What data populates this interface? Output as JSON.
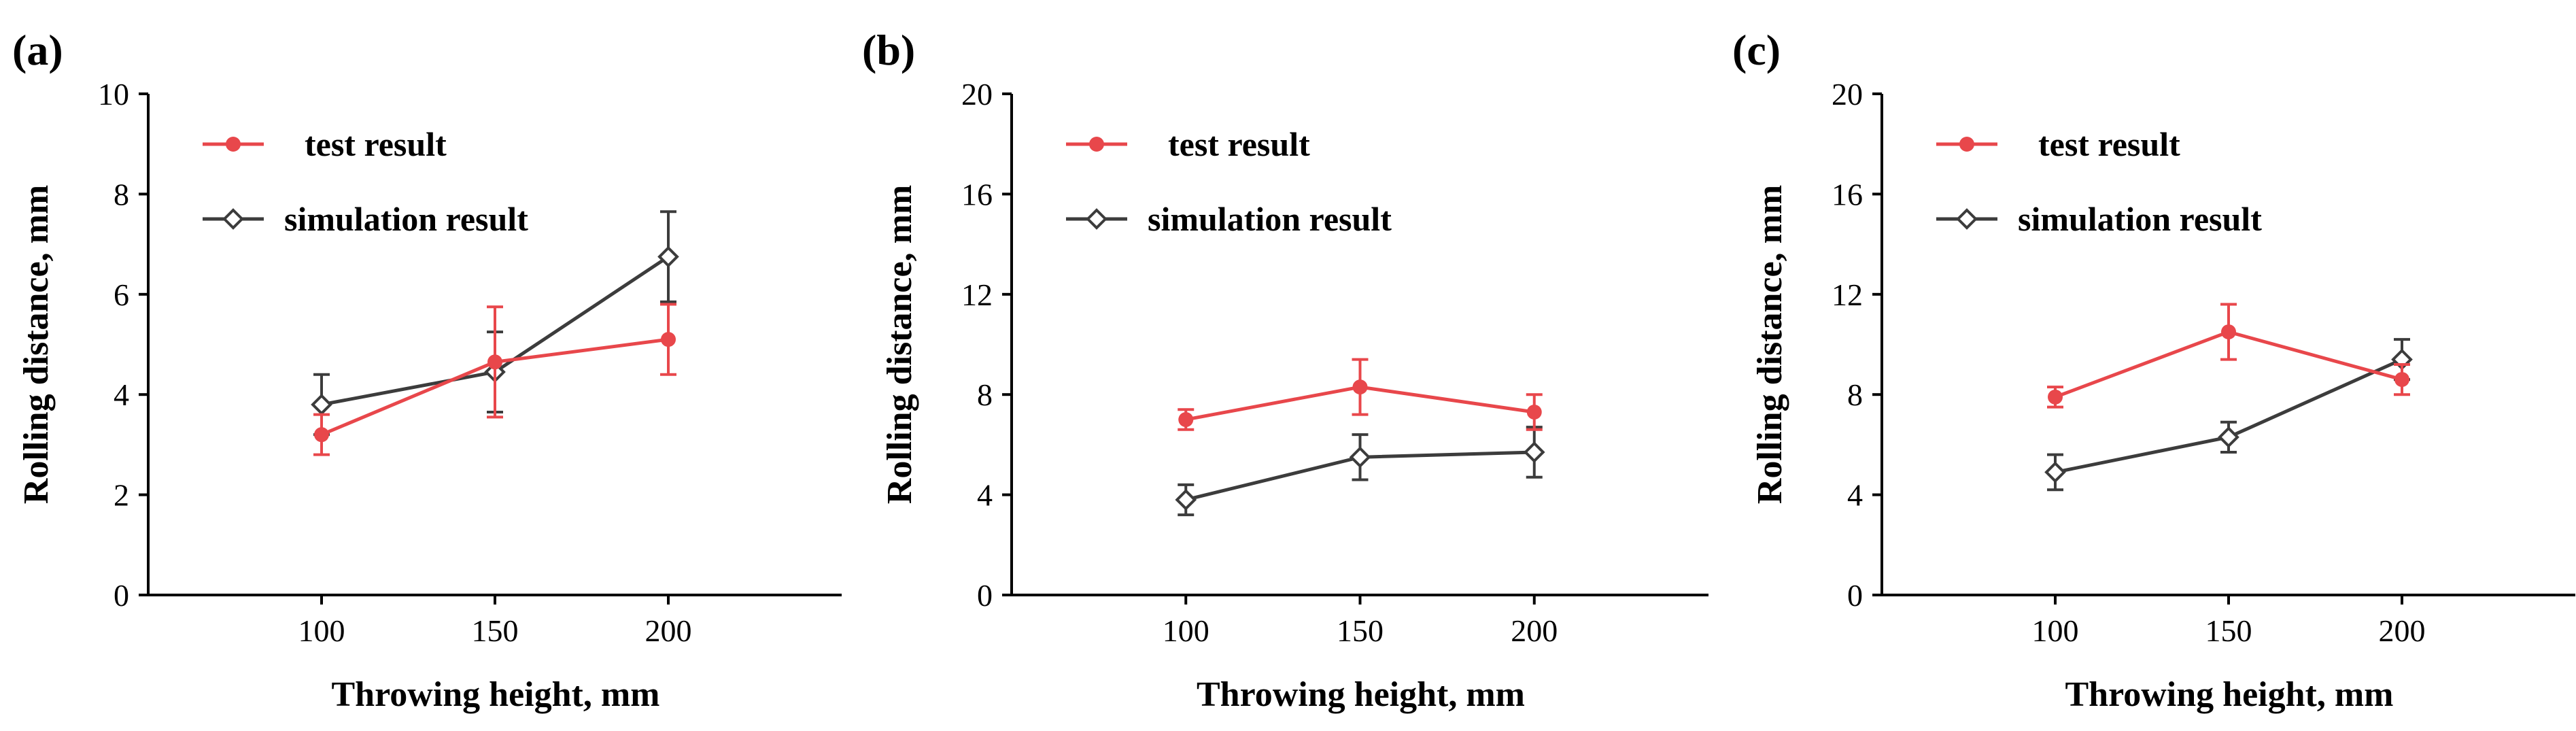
{
  "chart_data": [
    {
      "type": "line",
      "panel_label": "(a)",
      "xlabel": "Throwing  height, mm",
      "ylabel": "Rolling  distance,  mm",
      "x": [
        100,
        150,
        200
      ],
      "x_ticks": [
        "100",
        "150",
        "200"
      ],
      "xlim": [
        50,
        250
      ],
      "ylim": [
        0,
        10
      ],
      "y_ticks": [
        "0",
        "2",
        "4",
        "6",
        "8",
        "10"
      ],
      "legend_position": "top-left",
      "series": [
        {
          "name": "test result",
          "color": "#e8474b",
          "marker": "filled-circle",
          "values": [
            3.2,
            4.65,
            5.1
          ],
          "errors": [
            0.4,
            1.1,
            0.7
          ]
        },
        {
          "name": "simulation result",
          "color": "#3c3c3c",
          "marker": "open-diamond",
          "values": [
            3.8,
            4.45,
            6.75
          ],
          "errors": [
            0.6,
            0.8,
            0.9
          ]
        }
      ]
    },
    {
      "type": "line",
      "panel_label": "(b)",
      "xlabel": "Throwing  height, mm",
      "ylabel": "Rolling  distance,  mm",
      "x": [
        100,
        150,
        200
      ],
      "x_ticks": [
        "100",
        "150",
        "200"
      ],
      "xlim": [
        50,
        250
      ],
      "ylim": [
        0,
        20
      ],
      "y_ticks": [
        "0",
        "4",
        "8",
        "12",
        "16",
        "20"
      ],
      "legend_position": "top-left",
      "series": [
        {
          "name": "test result",
          "color": "#e8474b",
          "marker": "filled-circle",
          "values": [
            7.0,
            8.3,
            7.3
          ],
          "errors": [
            0.4,
            1.1,
            0.7
          ]
        },
        {
          "name": "simulation result",
          "color": "#3c3c3c",
          "marker": "open-diamond",
          "values": [
            3.8,
            5.5,
            5.7
          ],
          "errors": [
            0.6,
            0.9,
            1.0
          ]
        }
      ]
    },
    {
      "type": "line",
      "panel_label": "(c)",
      "xlabel": "Throwing  height, mm",
      "ylabel": "Rolling  distance,  mm",
      "x": [
        100,
        150,
        200
      ],
      "x_ticks": [
        "100",
        "150",
        "200"
      ],
      "xlim": [
        50,
        250
      ],
      "ylim": [
        0,
        20
      ],
      "y_ticks": [
        "0",
        "4",
        "8",
        "12",
        "16",
        "20"
      ],
      "legend_position": "top-left",
      "series": [
        {
          "name": "test result",
          "color": "#e8474b",
          "marker": "filled-circle",
          "values": [
            7.9,
            10.5,
            8.6
          ],
          "errors": [
            0.4,
            1.1,
            0.6
          ]
        },
        {
          "name": "simulation result",
          "color": "#3c3c3c",
          "marker": "open-diamond",
          "values": [
            4.9,
            6.3,
            9.4
          ],
          "errors": [
            0.7,
            0.6,
            0.8
          ]
        }
      ]
    }
  ]
}
